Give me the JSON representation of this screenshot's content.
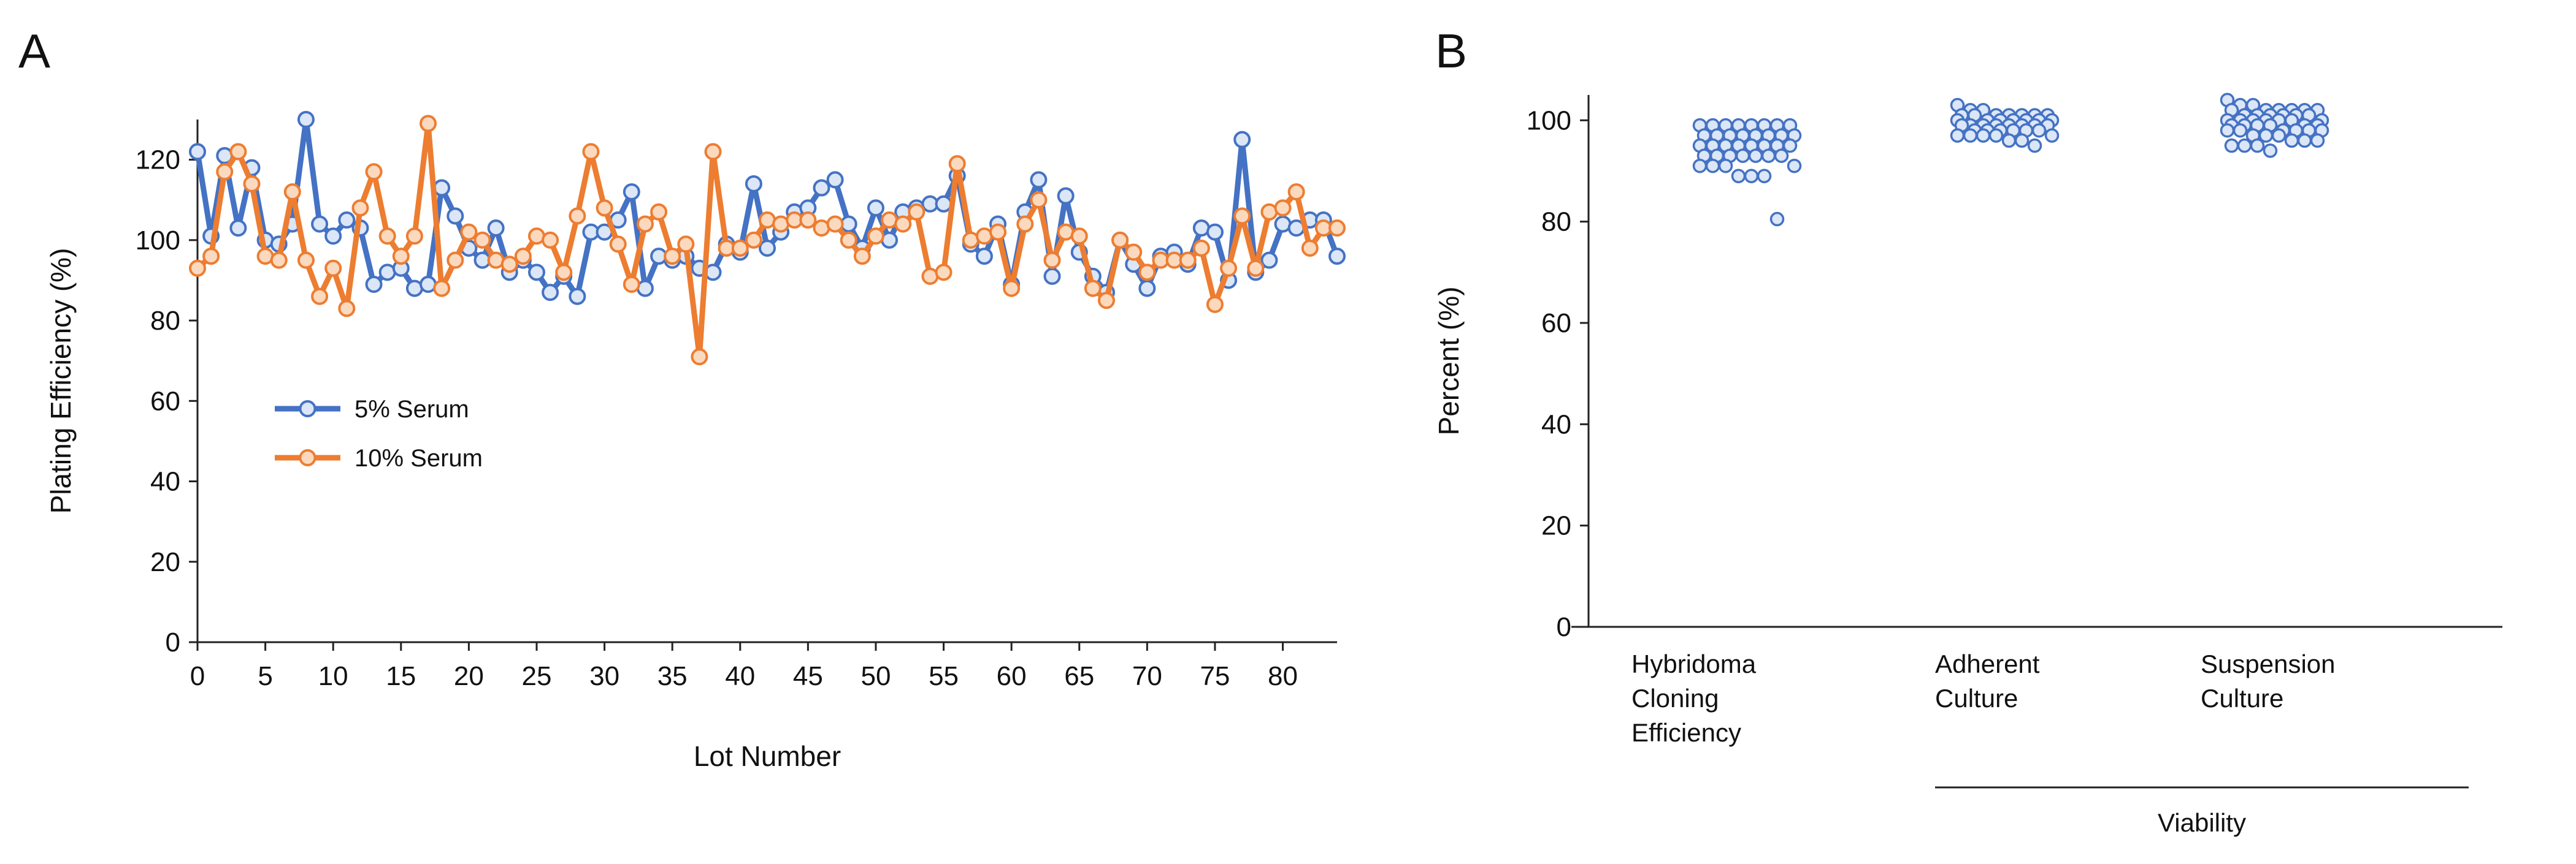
{
  "panels": [
    {
      "letter": "A"
    },
    {
      "letter": "B"
    }
  ],
  "chart_data": [
    {
      "type": "line",
      "xlabel": "Lot Number",
      "ylabel": "Plating Efficiency (%)",
      "xlim": [
        0,
        84
      ],
      "ylim": [
        0,
        130
      ],
      "xticks": [
        0,
        5,
        10,
        15,
        20,
        25,
        30,
        35,
        40,
        45,
        50,
        55,
        60,
        65,
        70,
        75,
        80
      ],
      "yticks": [
        0,
        20,
        40,
        60,
        80,
        100,
        120
      ],
      "legend_position": "left-middle",
      "series": [
        {
          "name": "5% Serum",
          "color": "#4472C4",
          "values": [
            122,
            101,
            121,
            103,
            118,
            100,
            99,
            104,
            130,
            104,
            101,
            105,
            103,
            89,
            92,
            93,
            88,
            89,
            113,
            106,
            98,
            95,
            103,
            92,
            95,
            92,
            87,
            91,
            86,
            102,
            102,
            105,
            112,
            88,
            96,
            95,
            96,
            93,
            92,
            99,
            97,
            114,
            98,
            102,
            107,
            108,
            113,
            115,
            104,
            98,
            108,
            100,
            107,
            108,
            109,
            109,
            116,
            99,
            96,
            104,
            89,
            107,
            115,
            91,
            111,
            97,
            91,
            87,
            100,
            94,
            88,
            96,
            97,
            94,
            103,
            102,
            90,
            125,
            92,
            95,
            104,
            103,
            105,
            105,
            96
          ]
        },
        {
          "name": "10% Serum",
          "color": "#ED7D31",
          "values": [
            93,
            96,
            117,
            122,
            114,
            96,
            95,
            112,
            95,
            86,
            93,
            83,
            108,
            117,
            101,
            96,
            101,
            129,
            88,
            95,
            102,
            100,
            95,
            94,
            96,
            101,
            100,
            92,
            106,
            122,
            108,
            99,
            89,
            104,
            107,
            96,
            99,
            71,
            122,
            98,
            98,
            100,
            105,
            104,
            105,
            105,
            103,
            104,
            100,
            96,
            101,
            105,
            104,
            107,
            91,
            92,
            119,
            100,
            101,
            102,
            88,
            104,
            110,
            95,
            102,
            101,
            88,
            85,
            100,
            97,
            92,
            95,
            95,
            95,
            98,
            84,
            93,
            106,
            93,
            107,
            108,
            112,
            98,
            103,
            103
          ]
        }
      ]
    },
    {
      "type": "scatter",
      "ylabel": "Percent (%)",
      "ylim": [
        0,
        105
      ],
      "yticks": [
        0,
        20,
        40,
        60,
        80,
        100
      ],
      "categories": [
        "Hybridoma\nCloning\nEfficiency",
        "Adherent\nCulture",
        "Suspension\nCulture"
      ],
      "group_label": "Viability",
      "group_categories": [
        "Adherent\nCulture",
        "Suspension\nCulture"
      ],
      "marker_color": "#4472C4",
      "series": [
        {
          "name": "Hybridoma\nCloning\nEfficiency",
          "values": [
            99,
            99,
            99,
            99,
            99,
            99,
            99,
            99,
            97,
            97,
            97,
            97,
            97,
            97,
            97,
            97,
            95,
            95,
            95,
            95,
            95,
            95,
            95,
            95,
            93,
            93,
            93,
            93,
            93,
            93,
            93,
            91,
            91,
            91,
            91,
            89,
            89,
            89,
            80.5
          ]
        },
        {
          "name": "Adherent\nCulture",
          "values": [
            103,
            102,
            102,
            101,
            101,
            101,
            101,
            101,
            101,
            101,
            100,
            100,
            100,
            100,
            100,
            100,
            100,
            99,
            99,
            99,
            99,
            99,
            99,
            99,
            99,
            98,
            98,
            98,
            98,
            98,
            98,
            97,
            97,
            97,
            97,
            97,
            96,
            96,
            95
          ]
        },
        {
          "name": "Suspension\nCulture",
          "values": [
            104,
            103,
            103,
            102,
            102,
            102,
            102,
            102,
            102,
            101,
            101,
            101,
            101,
            101,
            101,
            100,
            100,
            100,
            100,
            100,
            100,
            100,
            99,
            99,
            99,
            99,
            99,
            99,
            98,
            98,
            98,
            98,
            98,
            98,
            97,
            97,
            97,
            96,
            96,
            96,
            95,
            95,
            95,
            94
          ]
        }
      ]
    }
  ]
}
